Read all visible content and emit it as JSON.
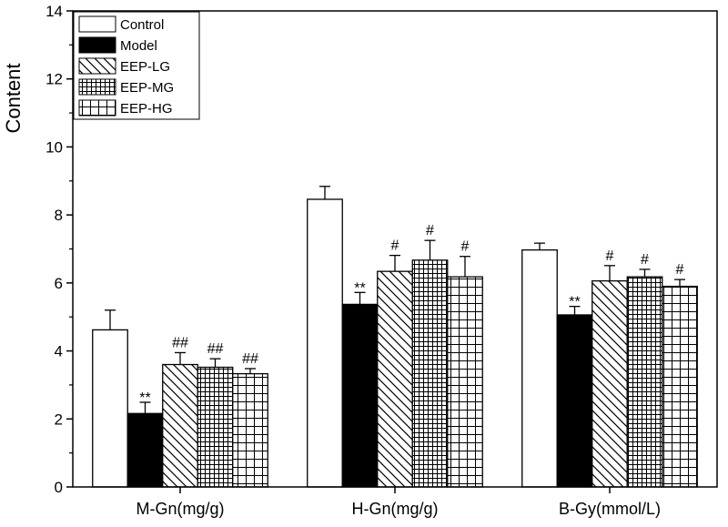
{
  "chart_data": {
    "type": "bar",
    "title": "",
    "xlabel": "",
    "ylabel": "Content",
    "ylim": [
      0,
      14
    ],
    "yticks": [
      0,
      2,
      4,
      6,
      8,
      10,
      12,
      14
    ],
    "categories": [
      "M-Gn(mg/g)",
      "H-Gn(mg/g)",
      "B-Gy(mmol/L)"
    ],
    "series": [
      {
        "name": "Control",
        "pattern": "empty",
        "values": [
          4.62,
          8.46,
          6.97
        ],
        "errors": [
          0.58,
          0.38,
          0.2
        ],
        "marks": [
          "",
          "",
          ""
        ]
      },
      {
        "name": "Model",
        "pattern": "solid",
        "values": [
          2.16,
          5.37,
          5.06
        ],
        "errors": [
          0.33,
          0.35,
          0.25
        ],
        "marks": [
          "**",
          "**",
          "**"
        ]
      },
      {
        "name": "EEP-LG",
        "pattern": "diagonal",
        "values": [
          3.6,
          6.34,
          6.06
        ],
        "errors": [
          0.35,
          0.47,
          0.45
        ],
        "marks": [
          "##",
          "#",
          "#"
        ]
      },
      {
        "name": "EEP-MG",
        "pattern": "finegrid",
        "values": [
          3.52,
          6.67,
          6.18
        ],
        "errors": [
          0.25,
          0.58,
          0.22
        ],
        "marks": [
          "##",
          "#",
          "#"
        ]
      },
      {
        "name": "EEP-HG",
        "pattern": "grid",
        "values": [
          3.33,
          6.18,
          5.9
        ],
        "errors": [
          0.15,
          0.6,
          0.2
        ],
        "marks": [
          "##",
          "#",
          "#"
        ]
      }
    ],
    "legend_position": "top-left"
  }
}
